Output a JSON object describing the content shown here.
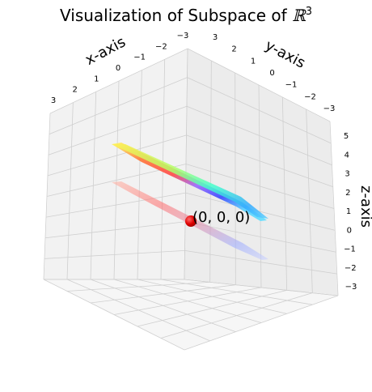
{
  "chart_data": {
    "type": "surface",
    "title": "Visualization of Subspace of ℝ³",
    "title_prefix": "Visualization of Subspace of ",
    "title_math_symbol": "ℝ",
    "title_math_exponent": "3",
    "xlabel": "x-axis",
    "ylabel": "y-axis",
    "zlabel": "z-axis",
    "xlim": [
      -3,
      3
    ],
    "ylim": [
      -3,
      3
    ],
    "zlim": [
      -3,
      5
    ],
    "x_ticks": [
      "3",
      "2",
      "1",
      "0",
      "−1",
      "−2",
      "−3"
    ],
    "y_ticks": [
      "3",
      "2",
      "1",
      "0",
      "−1",
      "−2",
      "−3"
    ],
    "z_ticks": [
      "5",
      "4",
      "3",
      "2",
      "1",
      "0",
      "−1",
      "−2",
      "−3"
    ],
    "grid": true,
    "colormap": "jet",
    "point": {
      "x": 0,
      "y": 0,
      "z": 0,
      "label": "(0, 0, 0)",
      "color": "#e00000"
    },
    "surfaces": [
      {
        "name": "upper plane",
        "note": "colored jet surface sheet above the origin"
      },
      {
        "name": "lower plane",
        "note": "faint colored sheet passing through origin"
      }
    ]
  },
  "colors": {
    "pane_left": "#f2f2f2",
    "pane_right": "#ededed",
    "pane_floor": "#f7f7f7",
    "grid": "#cfcfcf",
    "edge": "#ffffff"
  }
}
